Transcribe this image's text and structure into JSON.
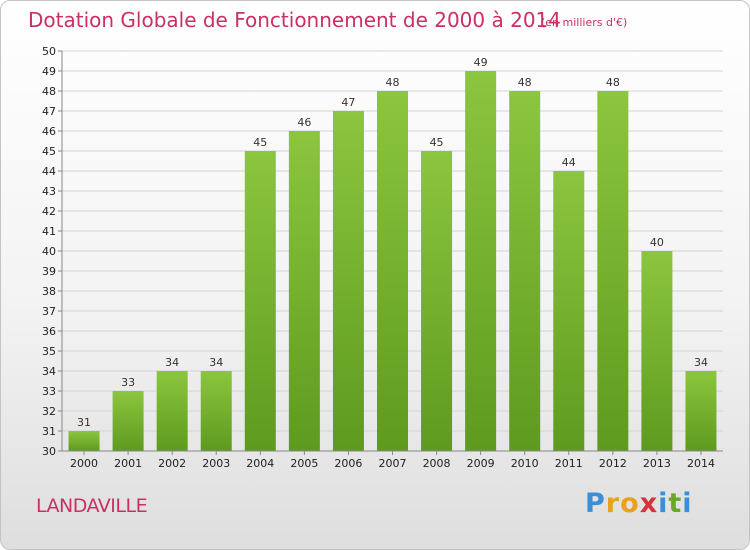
{
  "chart_data": {
    "type": "bar",
    "title": "Dotation Globale de Fonctionnement de 2000 à 2014",
    "subtitle": "(en milliers d'€)",
    "categories": [
      "2000",
      "2001",
      "2002",
      "2003",
      "2004",
      "2005",
      "2006",
      "2007",
      "2008",
      "2009",
      "2010",
      "2011",
      "2012",
      "2013",
      "2014"
    ],
    "values": [
      31,
      33,
      34,
      34,
      45,
      46,
      47,
      48,
      45,
      49,
      48,
      44,
      48,
      40,
      34
    ],
    "ylim": [
      30,
      50
    ],
    "yticks": [
      "30",
      "31",
      "32",
      "33",
      "34",
      "35",
      "36",
      "37",
      "38",
      "39",
      "40",
      "41",
      "42",
      "43",
      "44",
      "45",
      "46",
      "47",
      "48",
      "49",
      "50"
    ],
    "grid": true,
    "bar_color": "#8cc63f",
    "bar_color_dark": "#5e9a1e"
  },
  "footer": {
    "place": "LANDAVILLE",
    "logo": "Proxiti"
  }
}
